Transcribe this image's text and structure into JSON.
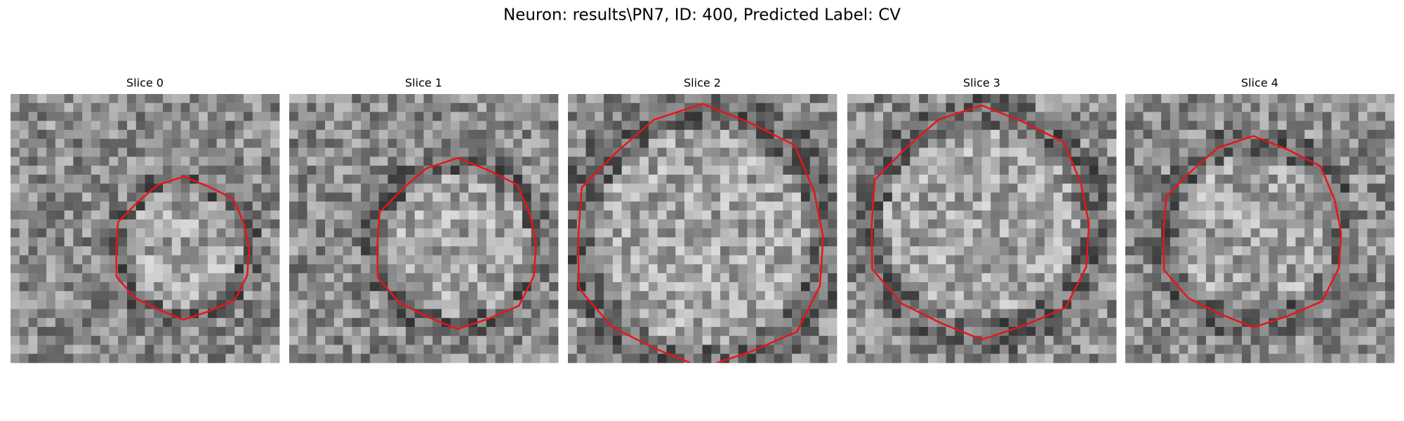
{
  "title": "Neuron: results\\PN7, ID: 400, Predicted Label: CV",
  "panels": [
    {
      "title": "Slice 0"
    },
    {
      "title": "Slice 1"
    },
    {
      "title": "Slice 2"
    },
    {
      "title": "Slice 3"
    },
    {
      "title": "Slice 4"
    }
  ]
}
